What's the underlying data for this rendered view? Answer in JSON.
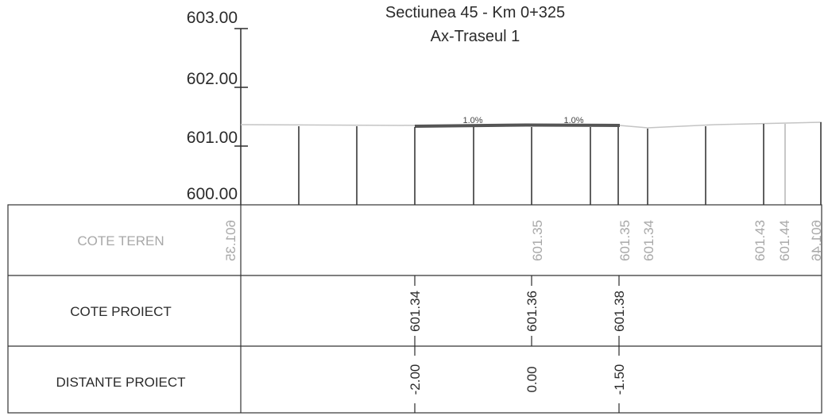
{
  "title": {
    "line1": "Sectiunea 45 - Km 0+325",
    "line2": "Ax-Traseul 1"
  },
  "elevation_axis": {
    "ticks": [
      "603.00",
      "602.00",
      "601.00",
      "600.00"
    ]
  },
  "slopes": [
    "1.0%",
    "1.0%"
  ],
  "table": {
    "rows": [
      {
        "label": "COTE TEREN"
      },
      {
        "label": "COTE PROIECT"
      },
      {
        "label": "DISTANTE PROIECT"
      }
    ],
    "cote_teren": [
      {
        "text": "601.35",
        "mirrored": true
      },
      {
        "text": "601.35",
        "mirrored": false
      },
      {
        "text": "601.35",
        "mirrored": false
      },
      {
        "text": "601.34",
        "mirrored": false
      },
      {
        "text": "601.43",
        "mirrored": false
      },
      {
        "text": "601.44",
        "mirrored": false
      },
      {
        "text": "601.46",
        "mirrored": true
      }
    ],
    "cote_proiect": [
      "601.34",
      "601.36",
      "601.38"
    ],
    "distante_proiect": [
      "-2.00",
      "0.00",
      "-1.50"
    ]
  },
  "colors": {
    "ink": "#2b2b2b",
    "terrain": "#c4c4c4",
    "terrain_text": "#a8a8a8",
    "design_line": "#555555",
    "grid": "#333333"
  }
}
